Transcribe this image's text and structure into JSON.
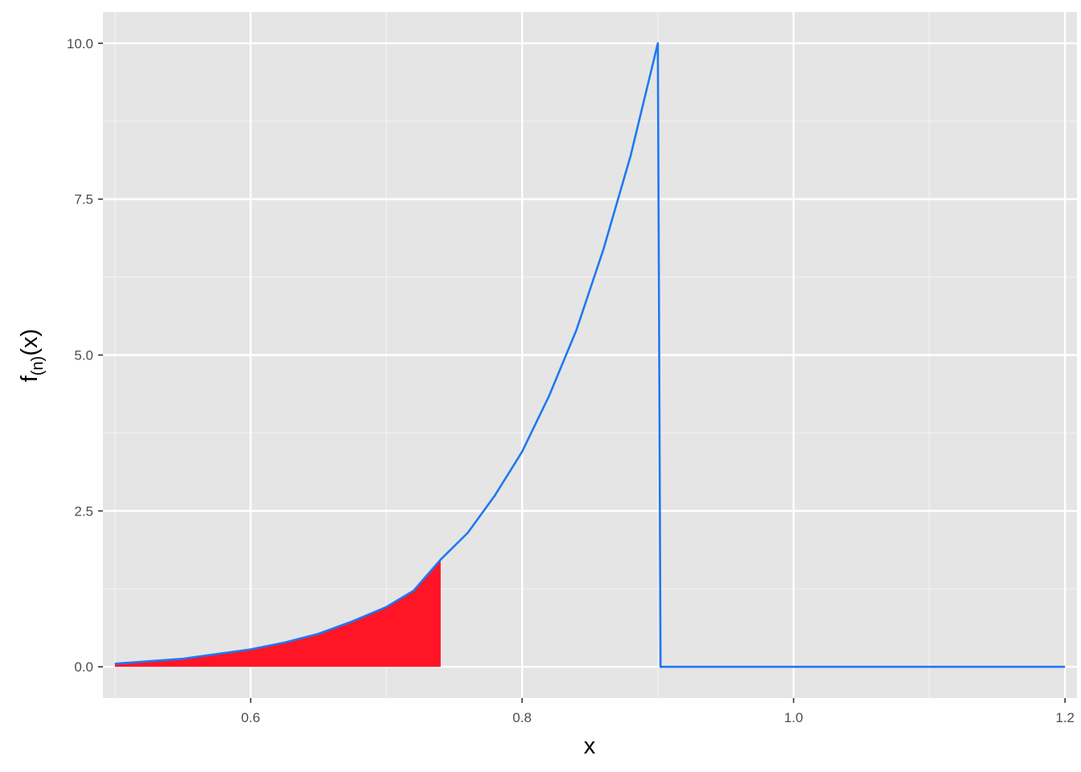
{
  "chart_data": {
    "type": "line",
    "xlabel": "x",
    "ylabel": {
      "base": "f",
      "subscript": "(n)",
      "suffix": "(x)"
    },
    "xlim": [
      0.4912,
      1.2088
    ],
    "ylim": [
      -0.5,
      10.5
    ],
    "x_ticks": [
      {
        "value": 0.6,
        "label": "0.6"
      },
      {
        "value": 0.8,
        "label": "0.8"
      },
      {
        "value": 1.0,
        "label": "1.0"
      },
      {
        "value": 1.2,
        "label": "1.2"
      }
    ],
    "y_ticks": [
      {
        "value": 0.0,
        "label": "0.0"
      },
      {
        "value": 2.5,
        "label": "2.5"
      },
      {
        "value": 5.0,
        "label": "5.0"
      },
      {
        "value": 7.5,
        "label": "7.5"
      },
      {
        "value": 10.0,
        "label": "10.0"
      }
    ],
    "x_minor": [
      0.5,
      0.7,
      0.9,
      1.1
    ],
    "y_minor": [
      1.25,
      3.75,
      6.25,
      8.75
    ],
    "grid": true,
    "series": [
      {
        "color": "#1f78f2",
        "points": [
          [
            0.5,
            0.05
          ],
          [
            0.55,
            0.13
          ],
          [
            0.6,
            0.28
          ],
          [
            0.625,
            0.39
          ],
          [
            0.65,
            0.53
          ],
          [
            0.675,
            0.73
          ],
          [
            0.7,
            0.96
          ],
          [
            0.72,
            1.22
          ],
          [
            0.74,
            1.72
          ],
          [
            0.76,
            2.15
          ],
          [
            0.78,
            2.75
          ],
          [
            0.8,
            3.45
          ],
          [
            0.82,
            4.35
          ],
          [
            0.84,
            5.4
          ],
          [
            0.86,
            6.7
          ],
          [
            0.88,
            8.2
          ],
          [
            0.9,
            10.0
          ],
          [
            0.902,
            0.0
          ],
          [
            1.2,
            0.0
          ]
        ]
      }
    ],
    "shaded_region": {
      "color": "#ff1526",
      "x_from": 0.5,
      "x_to": 0.74
    }
  }
}
